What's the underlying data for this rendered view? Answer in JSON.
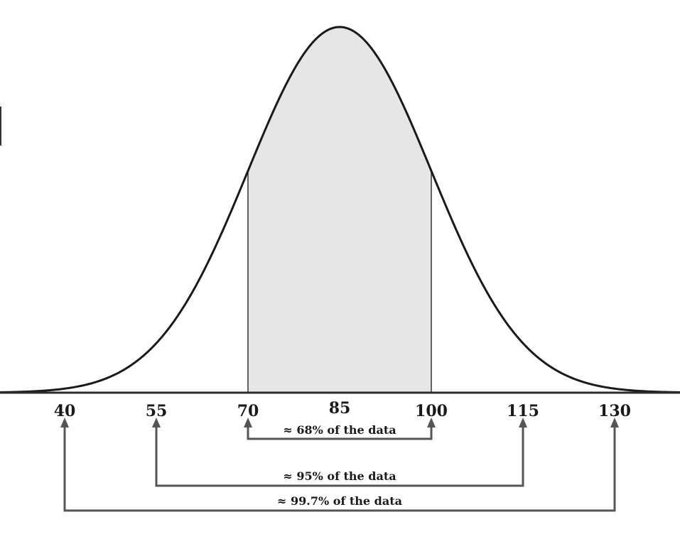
{
  "chart_data": {
    "type": "area",
    "title": "",
    "xlabel": "",
    "ylabel": "",
    "distribution": {
      "mean": 85,
      "sd": 15
    },
    "xlim": [
      22,
      148
    ],
    "shaded_range": [
      70,
      100
    ],
    "ticks": [
      {
        "value": 40,
        "label": "40"
      },
      {
        "value": 55,
        "label": "55"
      },
      {
        "value": 70,
        "label": "70"
      },
      {
        "value": 85,
        "label": "85"
      },
      {
        "value": 100,
        "label": "100"
      },
      {
        "value": 115,
        "label": "115"
      },
      {
        "value": 130,
        "label": "130"
      }
    ],
    "intervals": [
      {
        "from": 70,
        "to": 100,
        "label": "≈ 68% of the data"
      },
      {
        "from": 55,
        "to": 115,
        "label": "≈ 95% of the data"
      },
      {
        "from": 40,
        "to": 130,
        "label": "≈ 99.7% of the data"
      }
    ],
    "colors": {
      "curve": "#1a1a1a",
      "shade": "#e6e6e6",
      "bracket": "#555555"
    }
  }
}
